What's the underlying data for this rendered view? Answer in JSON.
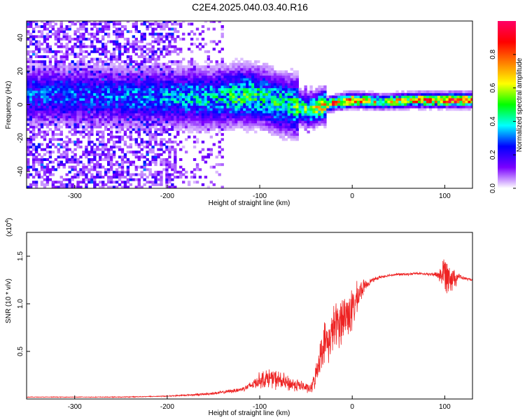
{
  "title": "C2E4.2025.040.03.40.R16",
  "chart_data": [
    {
      "type": "heatmap",
      "xlabel": "Height of straight line (km)",
      "ylabel": "Frequency (Hz)",
      "xlim": [
        -352,
        130
      ],
      "ylim": [
        -50,
        50
      ],
      "xticks": [
        -300,
        -200,
        -100,
        0,
        100
      ],
      "yticks": [
        -40,
        -20,
        0,
        20,
        40
      ],
      "grid": false,
      "colorbar": {
        "label": "Normalized spectral amplitude",
        "range": [
          0,
          1
        ],
        "ticks": [
          0.0,
          0.2,
          0.4,
          0.6,
          0.8
        ],
        "tick_labels": [
          "0.0",
          "0.2",
          "0.4",
          "0.6",
          "0.8"
        ],
        "colormap": [
          "#ffffff",
          "#7a00ff",
          "#0000ff",
          "#00ffff",
          "#00ff00",
          "#ffff00",
          "#ff7f00",
          "#ff0000",
          "#ff0066"
        ]
      },
      "ridge": [
        {
          "x": -345,
          "f": 5,
          "amp": 0.3
        },
        {
          "x": -300,
          "f": 5,
          "amp": 0.3
        },
        {
          "x": -250,
          "f": 4,
          "amp": 0.32
        },
        {
          "x": -200,
          "f": 4,
          "amp": 0.35
        },
        {
          "x": -150,
          "f": 3,
          "amp": 0.4
        },
        {
          "x": -120,
          "f": 5,
          "amp": 0.5
        },
        {
          "x": -100,
          "f": 4,
          "amp": 0.45
        },
        {
          "x": -80,
          "f": 0,
          "amp": 0.45
        },
        {
          "x": -60,
          "f": -2,
          "amp": 0.5
        },
        {
          "x": -48,
          "f": -4,
          "amp": 0.55
        },
        {
          "x": -30,
          "f": -1,
          "amp": 0.75
        },
        {
          "x": -15,
          "f": 1,
          "amp": 0.85
        },
        {
          "x": 0,
          "f": 2,
          "amp": 0.85
        },
        {
          "x": 30,
          "f": 1,
          "amp": 0.6
        },
        {
          "x": 60,
          "f": 2,
          "amp": 0.75
        },
        {
          "x": 100,
          "f": 2,
          "amp": 0.9
        },
        {
          "x": 130,
          "f": 2,
          "amp": 0.85
        }
      ]
    },
    {
      "type": "line",
      "xlabel": "Height of straight line (km)",
      "ylabel": "SNR (10 * v/v)",
      "y_multiplier_label": "(x10",
      "y_multiplier_exp": "4",
      "xlim": [
        -352,
        130
      ],
      "ylim": [
        0,
        1.75
      ],
      "xticks": [
        -300,
        -200,
        -100,
        0,
        100
      ],
      "yticks": [
        0.5,
        1.0,
        1.5
      ],
      "ytick_labels": [
        "0.5",
        "1.0",
        "1.5"
      ],
      "grid": false,
      "series": [
        {
          "color": "#ee2222",
          "x": [
            -352,
            -300,
            -250,
            -200,
            -180,
            -160,
            -140,
            -120,
            -110,
            -100,
            -90,
            -80,
            -70,
            -60,
            -50,
            -45,
            -40,
            -35,
            -30,
            -25,
            -20,
            -15,
            -10,
            -5,
            0,
            5,
            10,
            15,
            20,
            30,
            40,
            50,
            60,
            70,
            80,
            90,
            95,
            100,
            105,
            110,
            115,
            120,
            130
          ],
          "y": [
            0.02,
            0.02,
            0.02,
            0.03,
            0.04,
            0.05,
            0.07,
            0.1,
            0.14,
            0.2,
            0.22,
            0.2,
            0.16,
            0.15,
            0.12,
            0.1,
            0.22,
            0.45,
            0.6,
            0.6,
            0.75,
            0.8,
            0.85,
            0.9,
            0.92,
            1.05,
            1.15,
            1.2,
            1.24,
            1.28,
            1.3,
            1.31,
            1.31,
            1.32,
            1.31,
            1.31,
            1.3,
            1.33,
            1.3,
            1.27,
            1.29,
            1.27,
            1.25
          ],
          "noise": [
            0.004,
            0.004,
            0.005,
            0.006,
            0.01,
            0.015,
            0.02,
            0.03,
            0.05,
            0.1,
            0.12,
            0.12,
            0.1,
            0.08,
            0.06,
            0.06,
            0.12,
            0.2,
            0.25,
            0.25,
            0.28,
            0.3,
            0.32,
            0.3,
            0.28,
            0.2,
            0.12,
            0.06,
            0.03,
            0.02,
            0.015,
            0.015,
            0.015,
            0.015,
            0.015,
            0.03,
            0.1,
            0.25,
            0.2,
            0.15,
            0.04,
            0.02,
            0.015
          ]
        }
      ]
    }
  ]
}
